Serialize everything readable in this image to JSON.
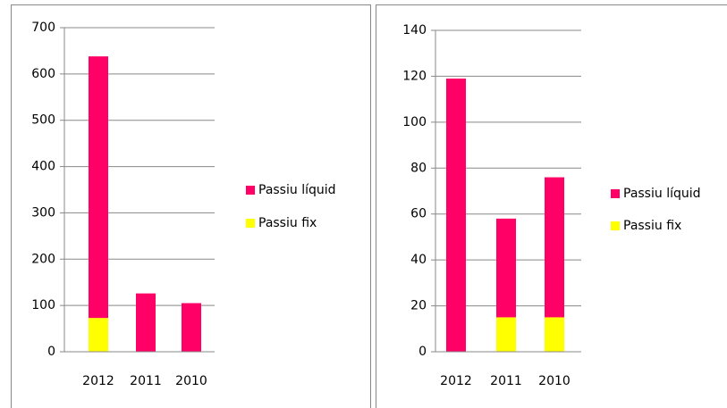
{
  "chart_data": [
    {
      "type": "bar",
      "stacked": true,
      "categories": [
        "2012",
        "2011",
        "2010"
      ],
      "series": [
        {
          "name": "Passiu líquid",
          "color": "#ff0066",
          "values": [
            565,
            126,
            105
          ]
        },
        {
          "name": "Passiu fix",
          "color": "#ffff00",
          "values": [
            73,
            0,
            0
          ]
        }
      ],
      "ylim": [
        0,
        700
      ],
      "yticks": [
        0,
        100,
        200,
        300,
        400,
        500,
        600,
        700
      ],
      "grid": true,
      "legend": "right"
    },
    {
      "type": "bar",
      "stacked": true,
      "categories": [
        "2012",
        "2011",
        "2010"
      ],
      "series": [
        {
          "name": "Passiu líquid",
          "color": "#ff0066",
          "values": [
            119,
            43,
            61
          ]
        },
        {
          "name": "Passiu fix",
          "color": "#ffff00",
          "values": [
            0,
            15,
            15
          ]
        }
      ],
      "ylim": [
        0,
        140
      ],
      "yticks": [
        0,
        20,
        40,
        60,
        80,
        100,
        120,
        140
      ],
      "grid": true,
      "legend": "right"
    }
  ]
}
